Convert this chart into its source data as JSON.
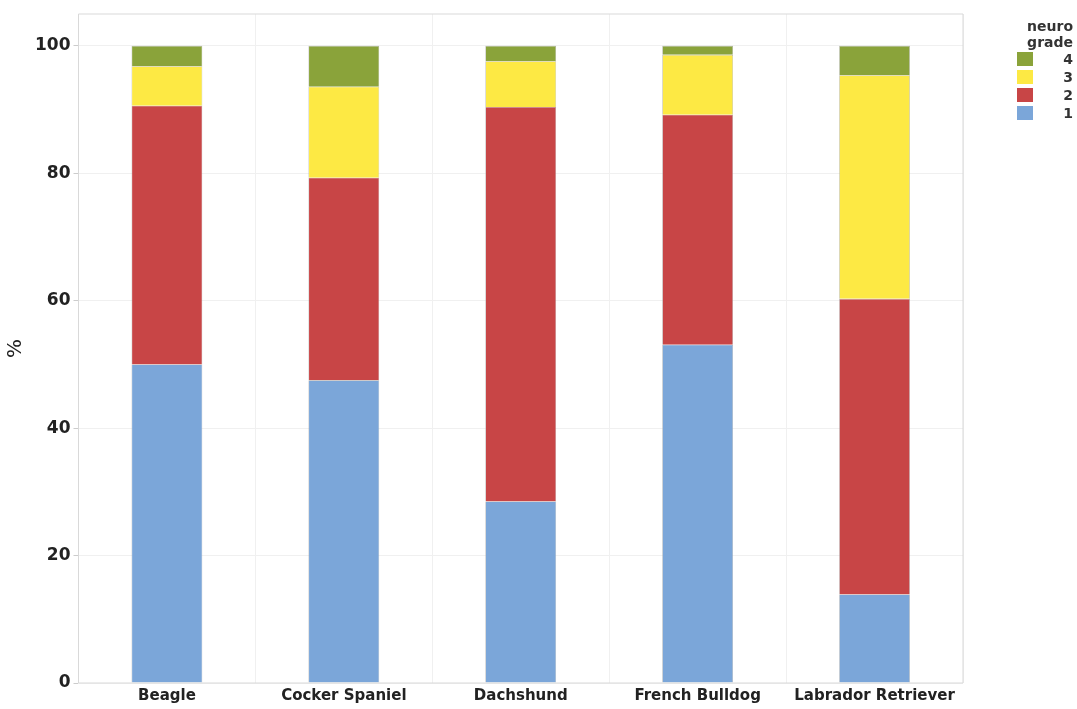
{
  "chart_data": {
    "type": "bar",
    "stacked": true,
    "ylabel": "%",
    "legend_title": "neuro grade",
    "legend": "top right",
    "grid": true,
    "categories": [
      "Beagle",
      "Cocker Spaniel",
      "Dachshund",
      "French Bulldog",
      "Labrador Retriever"
    ],
    "ylim": [
      0,
      105
    ],
    "yticks": [
      0,
      20,
      40,
      60,
      80,
      100
    ],
    "series": [
      {
        "name": "1",
        "color": "#7ba6d9",
        "values": [
          50,
          47.5,
          28.5,
          53.1,
          13.9
        ]
      },
      {
        "name": "2",
        "color": "#c84546",
        "values": [
          40.6,
          31.8,
          61.9,
          36.1,
          46.4
        ]
      },
      {
        "name": "3",
        "color": "#fde944",
        "values": [
          6.2,
          14.3,
          7.2,
          9.4,
          35.1
        ]
      },
      {
        "name": "4",
        "color": "#8aa33a",
        "values": [
          3.2,
          6.4,
          2.4,
          1.4,
          4.6
        ]
      }
    ]
  }
}
